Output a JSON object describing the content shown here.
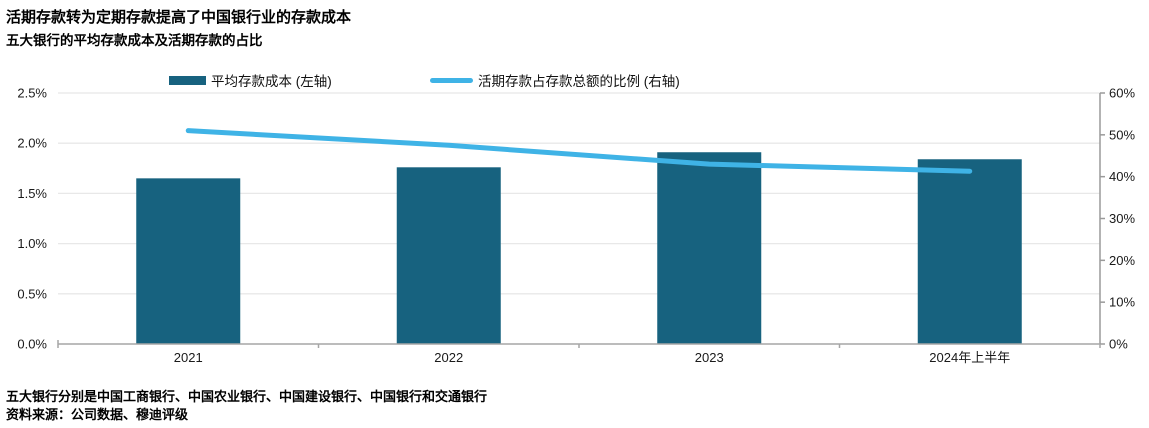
{
  "header": {
    "title": "活期存款转为定期存款提高了中国银行业的存款成本",
    "subtitle": "五大银行的平均存款成本及活期存款的占比"
  },
  "legend": {
    "items": [
      {
        "label": "平均存款成本 (左轴)",
        "swatch": "bar",
        "color": "#17627f"
      },
      {
        "label": "活期存款占存款总额的比例 (右轴)",
        "swatch": "line",
        "color": "#3fb3e6"
      }
    ]
  },
  "chart_data": {
    "type": "combo",
    "categories": [
      "2021",
      "2022",
      "2023",
      "2024年上半年"
    ],
    "series": [
      {
        "name": "平均存款成本 (左轴)",
        "type": "bar",
        "axis": "left",
        "color": "#17627f",
        "values": [
          1.65,
          1.76,
          1.91,
          1.84
        ],
        "unit": "%"
      },
      {
        "name": "活期存款占存款总额的比例 (右轴)",
        "type": "line",
        "axis": "right",
        "color": "#3fb3e6",
        "values": [
          51,
          47.5,
          43,
          41.3
        ],
        "unit": "%"
      }
    ],
    "left_axis": {
      "min": 0,
      "max": 2.5,
      "tick_labels": [
        "0.0%",
        "0.5%",
        "1.0%",
        "1.5%",
        "2.0%",
        "2.5%"
      ],
      "tick_values": [
        0,
        0.5,
        1.0,
        1.5,
        2.0,
        2.5
      ]
    },
    "right_axis": {
      "min": 0,
      "max": 60,
      "tick_labels": [
        "0%",
        "10%",
        "20%",
        "30%",
        "40%",
        "50%",
        "60%"
      ],
      "tick_values": [
        0,
        10,
        20,
        30,
        40,
        50,
        60
      ]
    },
    "grid": true,
    "legend_position": "top",
    "colors": {
      "gridline": "#e8e8e8",
      "baseline": "#a6a6a6",
      "right_axis_line": "#9a9a9a",
      "tick_text": "#1a1a1a"
    }
  },
  "footer": {
    "note": "五大银行分别是中国工商银行、中国农业银行、中国建设银行、中国银行和交通银行",
    "source": "资料来源：公司数据、穆迪评级"
  }
}
